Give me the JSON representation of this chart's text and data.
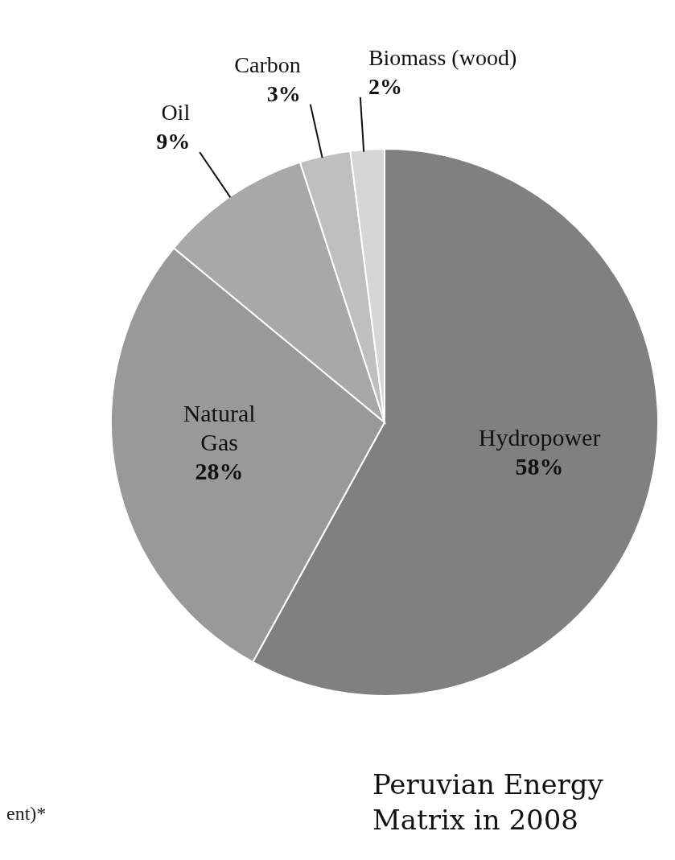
{
  "chart_data": {
    "type": "pie",
    "title": "Peruvian Energy Matrix in 2008",
    "categories": [
      "Hydropower",
      "Natural Gas",
      "Oil",
      "Carbon",
      "Biomass (wood)"
    ],
    "values": [
      58,
      28,
      9,
      3,
      2
    ],
    "value_labels": [
      "58%",
      "28%",
      "9%",
      "3%",
      "2%"
    ],
    "colors": [
      "#808080",
      "#999999",
      "#a8a8a8",
      "#bfbfbf",
      "#d6d6d6"
    ],
    "annotations": [
      "ent)*"
    ]
  }
}
